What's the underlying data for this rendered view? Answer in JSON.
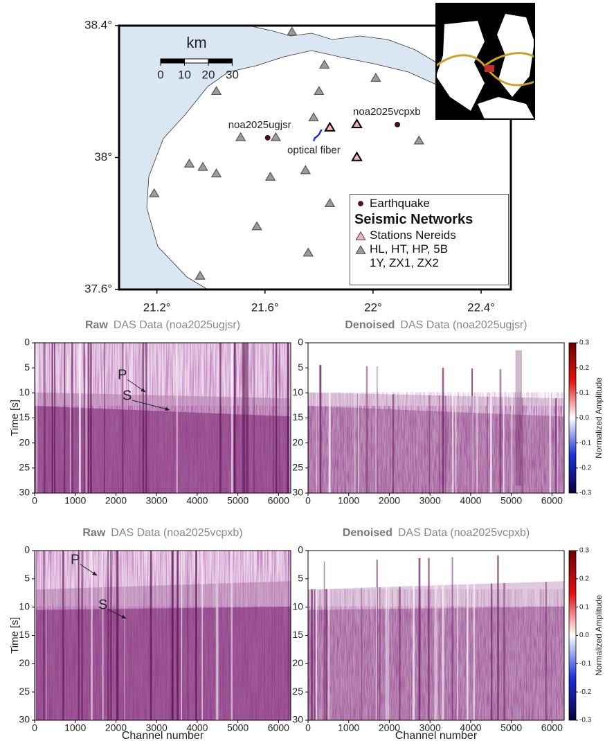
{
  "chart_data": [
    {
      "type": "map",
      "xlim": [
        21.06,
        22.51
      ],
      "ylim": [
        37.6,
        38.4
      ],
      "xticks": [
        {
          "value": 21.2,
          "label": "21.2°"
        },
        {
          "value": 21.6,
          "label": "21.6°"
        },
        {
          "value": 22,
          "label": "22°"
        },
        {
          "value": 22.4,
          "label": "22.4°"
        }
      ],
      "yticks": [
        {
          "value": 37.6,
          "label": "37.6°"
        },
        {
          "value": 38,
          "label": "38°"
        },
        {
          "value": 38.4,
          "label": "38.4°"
        }
      ],
      "series": [
        {
          "name": "Earthquake",
          "marker": "circle",
          "color": "#5c0d10",
          "x": [
            21.61,
            22.09
          ],
          "y": [
            38.06,
            38.1
          ],
          "labels": [
            "noa2025ugjsr",
            "noa2025vcpxb"
          ]
        },
        {
          "name": "Stations Nereids",
          "marker": "triangle",
          "color": "#f4aeb8",
          "x": [
            21.84,
            21.94,
            21.94
          ],
          "y": [
            38.09,
            38.1,
            38.0
          ]
        },
        {
          "name": "HL, HT, HP, 5B\n1Y, ZX1, ZX2",
          "marker": "triangle",
          "color": "#9c9c9c",
          "x": [
            21.7,
            21.82,
            21.42,
            21.8,
            22.01,
            21.78,
            21.51,
            21.64,
            21.32,
            21.37,
            21.42,
            21.62,
            21.75,
            22.17,
            21.19,
            21.84,
            21.57,
            21.76,
            21.36
          ],
          "y": [
            38.38,
            38.28,
            38.2,
            38.2,
            38.24,
            38.12,
            38.06,
            38.06,
            37.98,
            37.97,
            37.95,
            37.94,
            37.96,
            38.05,
            37.89,
            37.86,
            37.79,
            37.71,
            37.64
          ]
        }
      ],
      "fiber": {
        "name": "optical fiber",
        "color": "#1f2fd6",
        "x": [
          21.78,
          21.785,
          21.79,
          21.8,
          21.805,
          21.81
        ],
        "y": [
          38.05,
          38.06,
          38.062,
          38.07,
          38.078,
          38.085
        ]
      },
      "legend_title": "Seismic Networks",
      "scale_bar": {
        "unit": "km",
        "ticks": [
          0,
          10,
          20,
          30
        ]
      }
    },
    {
      "type": "heatmap",
      "style": "raw",
      "title_bold": "Raw",
      "title": "DAS Data (noa2025ugjsr)",
      "xlim": [
        0,
        6300
      ],
      "xticks": [
        0,
        1000,
        2000,
        3000,
        4000,
        5000,
        6000
      ],
      "ylim": [
        30,
        0
      ],
      "yticks": [
        0,
        5,
        10,
        15,
        20,
        25,
        30
      ],
      "ylabel": "Time [s]",
      "annotations": [
        "P",
        "S"
      ]
    },
    {
      "type": "heatmap",
      "style": "denoised",
      "title_bold": "Denoised",
      "title": "DAS Data (noa2025ugjsr)",
      "xlim": [
        0,
        6300
      ],
      "xticks": [
        0,
        1000,
        2000,
        3000,
        4000,
        5000,
        6000
      ],
      "ylim": [
        30,
        0
      ],
      "yticks": [
        0,
        5,
        10,
        15,
        20,
        25,
        30
      ],
      "colorbar": {
        "label": "Normalized Amplitude",
        "lim": [
          -0.3,
          0.3
        ],
        "ticks": [
          -0.3,
          -0.2,
          -0.1,
          {
            "value": 0,
            "label": "0.0"
          },
          0.1,
          0.2,
          0.3
        ],
        "colormap": [
          "#08003f",
          "#1a2fd6",
          "#ffffff",
          "#e31010",
          "#6a0000"
        ]
      }
    },
    {
      "type": "heatmap",
      "style": "raw",
      "title_bold": "Raw",
      "title": "DAS Data (noa2025vcpxb)",
      "xlim": [
        0,
        6300
      ],
      "xticks": [
        0,
        1000,
        2000,
        3000,
        4000,
        5000,
        6000
      ],
      "ylim": [
        30,
        0
      ],
      "yticks": [
        0,
        5,
        10,
        15,
        20,
        25,
        30
      ],
      "ylabel": "Time [s]",
      "xlabel": "Channel number",
      "annotations": [
        "P",
        "S"
      ]
    },
    {
      "type": "heatmap",
      "style": "denoised",
      "title_bold": "Denoised",
      "title": "DAS Data (noa2025vcpxb)",
      "xlim": [
        0,
        6300
      ],
      "xticks": [
        0,
        1000,
        2000,
        3000,
        4000,
        5000,
        6000
      ],
      "ylim": [
        30,
        0
      ],
      "yticks": [
        0,
        5,
        10,
        15,
        20,
        25,
        30
      ],
      "xlabel": "Channel number",
      "colorbar": {
        "label": "Normalized Amplitude",
        "lim": [
          -0.3,
          0.3
        ],
        "ticks": [
          -0.3,
          -0.2,
          -0.1,
          {
            "value": 0,
            "label": "0.0"
          },
          0.1,
          0.2,
          0.3
        ],
        "colormap": [
          "#08003f",
          "#1a2fd6",
          "#ffffff",
          "#e31010",
          "#6a0000"
        ]
      }
    }
  ]
}
